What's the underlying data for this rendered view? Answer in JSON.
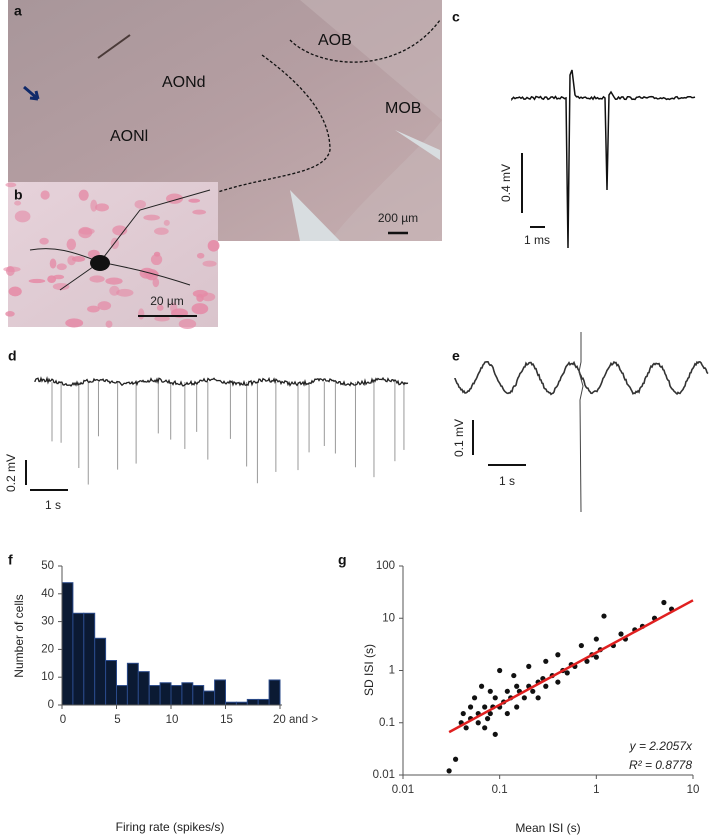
{
  "panel_labels": [
    "a",
    "b",
    "c",
    "d",
    "e",
    "f",
    "g"
  ],
  "histology": {
    "regions": [
      "AOB",
      "AONd",
      "AONl",
      "MOB"
    ],
    "scale_a": "200 µm",
    "scale_b": "20 µm"
  },
  "traces": {
    "c": {
      "amplitude": "0.4 mV",
      "time": "1 ms"
    },
    "d": {
      "amplitude": "0.2 mV",
      "time": "1 s"
    },
    "e": {
      "amplitude": "0.1 mV",
      "time": "1 s"
    }
  },
  "chart_data": [
    {
      "type": "histogram",
      "bins": [
        0,
        1,
        2,
        3,
        4,
        5,
        6,
        7,
        8,
        9,
        10,
        11,
        12,
        13,
        14,
        15,
        16,
        17,
        18,
        19,
        20
      ],
      "values": [
        44,
        33,
        33,
        24,
        16,
        7,
        15,
        12,
        7,
        8,
        7,
        8,
        7,
        5,
        9,
        1,
        1,
        2,
        2,
        9
      ],
      "xlim": [
        0,
        20
      ],
      "ylim": [
        0,
        50
      ],
      "xticks": [
        0,
        5,
        10,
        15,
        {
          "value": 20,
          "label": "20 and >"
        }
      ],
      "yticks": [
        0,
        10,
        20,
        30,
        40,
        50
      ],
      "x_label": "Firing rate (spikes/s)",
      "y_label": "Number of cells",
      "color": "#0b1a33",
      "edgecolor": "#2a4a8a"
    },
    {
      "type": "scatter",
      "x": [
        0.03,
        0.035,
        0.04,
        0.042,
        0.045,
        0.05,
        0.05,
        0.055,
        0.06,
        0.06,
        0.065,
        0.07,
        0.07,
        0.075,
        0.08,
        0.08,
        0.085,
        0.09,
        0.09,
        0.1,
        0.1,
        0.11,
        0.12,
        0.12,
        0.13,
        0.14,
        0.15,
        0.15,
        0.16,
        0.18,
        0.2,
        0.2,
        0.22,
        0.25,
        0.25,
        0.28,
        0.3,
        0.3,
        0.35,
        0.4,
        0.4,
        0.45,
        0.5,
        0.55,
        0.6,
        0.7,
        0.8,
        0.9,
        1,
        1,
        1.1,
        1.2,
        1.5,
        1.8,
        2,
        2.5,
        3,
        4,
        5,
        6
      ],
      "values": [
        0.012,
        0.02,
        0.1,
        0.15,
        0.08,
        0.12,
        0.2,
        0.3,
        0.1,
        0.15,
        0.5,
        0.08,
        0.2,
        0.12,
        0.15,
        0.4,
        0.2,
        0.06,
        0.3,
        0.2,
        1.0,
        0.25,
        0.15,
        0.4,
        0.3,
        0.8,
        0.2,
        0.5,
        0.4,
        0.3,
        0.5,
        1.2,
        0.4,
        0.6,
        0.3,
        0.7,
        0.5,
        1.5,
        0.8,
        0.6,
        2,
        1,
        0.9,
        1.3,
        1.2,
        3,
        1.5,
        2,
        1.8,
        4,
        2.5,
        11,
        3,
        5,
        4,
        6,
        7,
        10,
        20,
        15
      ],
      "color": "#111111",
      "fit": {
        "x": [
          0.03,
          10
        ],
        "values": [
          0.0662,
          22.06
        ],
        "color": "#e02020"
      },
      "annotations": [
        "y = 2.2057x",
        "R² = 0.8778"
      ],
      "log_x": true,
      "log_y": true,
      "xlim": [
        0.01,
        10
      ],
      "ylim": [
        0.01,
        100
      ],
      "xticks": [
        0.01,
        0.1,
        1,
        10
      ],
      "yticks": [
        0.01,
        0.1,
        1,
        10,
        100
      ],
      "x_label": "Mean ISI (s)",
      "y_label": "SD ISI (s)"
    }
  ]
}
